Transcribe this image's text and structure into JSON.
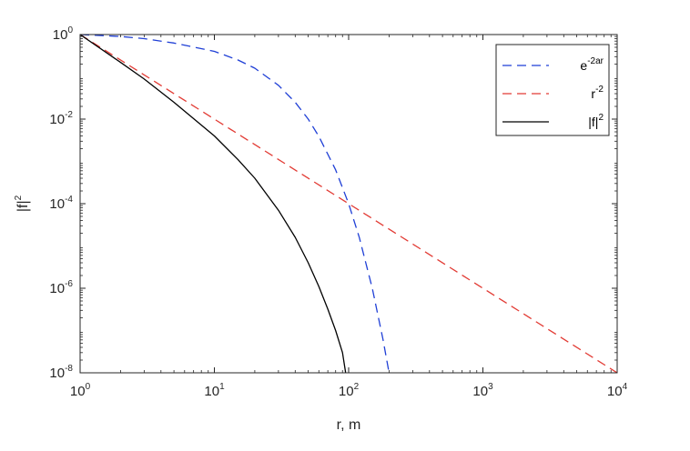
{
  "chart_data": {
    "type": "line",
    "xscale": "log",
    "yscale": "log",
    "xlim": [
      1,
      10000
    ],
    "ylim": [
      1e-08,
      1
    ],
    "xlabel": "r, m",
    "ylabel": {
      "base": "|f|",
      "exp": "2"
    },
    "x_ticks": [
      {
        "value": 1,
        "base": "10",
        "exp": "0"
      },
      {
        "value": 10,
        "base": "10",
        "exp": "1"
      },
      {
        "value": 100,
        "base": "10",
        "exp": "2"
      },
      {
        "value": 1000,
        "base": "10",
        "exp": "3"
      },
      {
        "value": 10000,
        "base": "10",
        "exp": "4"
      }
    ],
    "y_ticks": [
      {
        "value": 1,
        "base": "10",
        "exp": "0"
      },
      {
        "value": 0.01,
        "base": "10",
        "exp": "-2"
      },
      {
        "value": 0.0001,
        "base": "10",
        "exp": "-4"
      },
      {
        "value": 1e-06,
        "base": "10",
        "exp": "-6"
      },
      {
        "value": 1e-08,
        "base": "10",
        "exp": "-8"
      }
    ],
    "grid": false,
    "legend_position": "top-right",
    "series": [
      {
        "label": {
          "base": "e",
          "exp": "-2ar"
        },
        "color": "#1f3fd6",
        "style": "dashed",
        "x": [
          1,
          2,
          3,
          5,
          10,
          15,
          20,
          30,
          40,
          50,
          60,
          80,
          100,
          120,
          150,
          180,
          200
        ],
        "y": [
          1,
          0.9,
          0.8,
          0.63,
          0.4,
          0.25,
          0.16,
          0.063,
          0.025,
          0.01,
          0.0039,
          0.00063,
          0.0001,
          1.6e-05,
          1e-06,
          6.3e-08,
          1e-08
        ]
      },
      {
        "label": {
          "base": "r",
          "exp": "-2"
        },
        "color": "#e23b34",
        "style": "dashed",
        "x": [
          1,
          10,
          100,
          1000,
          10000
        ],
        "y": [
          1,
          0.01,
          0.0001,
          1e-06,
          1e-08
        ]
      },
      {
        "label": {
          "base": "|f|",
          "exp": "2"
        },
        "color": "#000000",
        "style": "solid",
        "x": [
          1,
          2,
          3,
          5,
          10,
          15,
          20,
          30,
          40,
          50,
          60,
          70,
          80,
          90,
          95
        ],
        "y": [
          1,
          0.22,
          0.089,
          0.025,
          0.004,
          0.0011,
          0.0004,
          7e-05,
          1.6e-05,
          4e-06,
          1.1e-06,
          3.2e-07,
          1e-07,
          3e-08,
          1e-08
        ]
      }
    ]
  }
}
